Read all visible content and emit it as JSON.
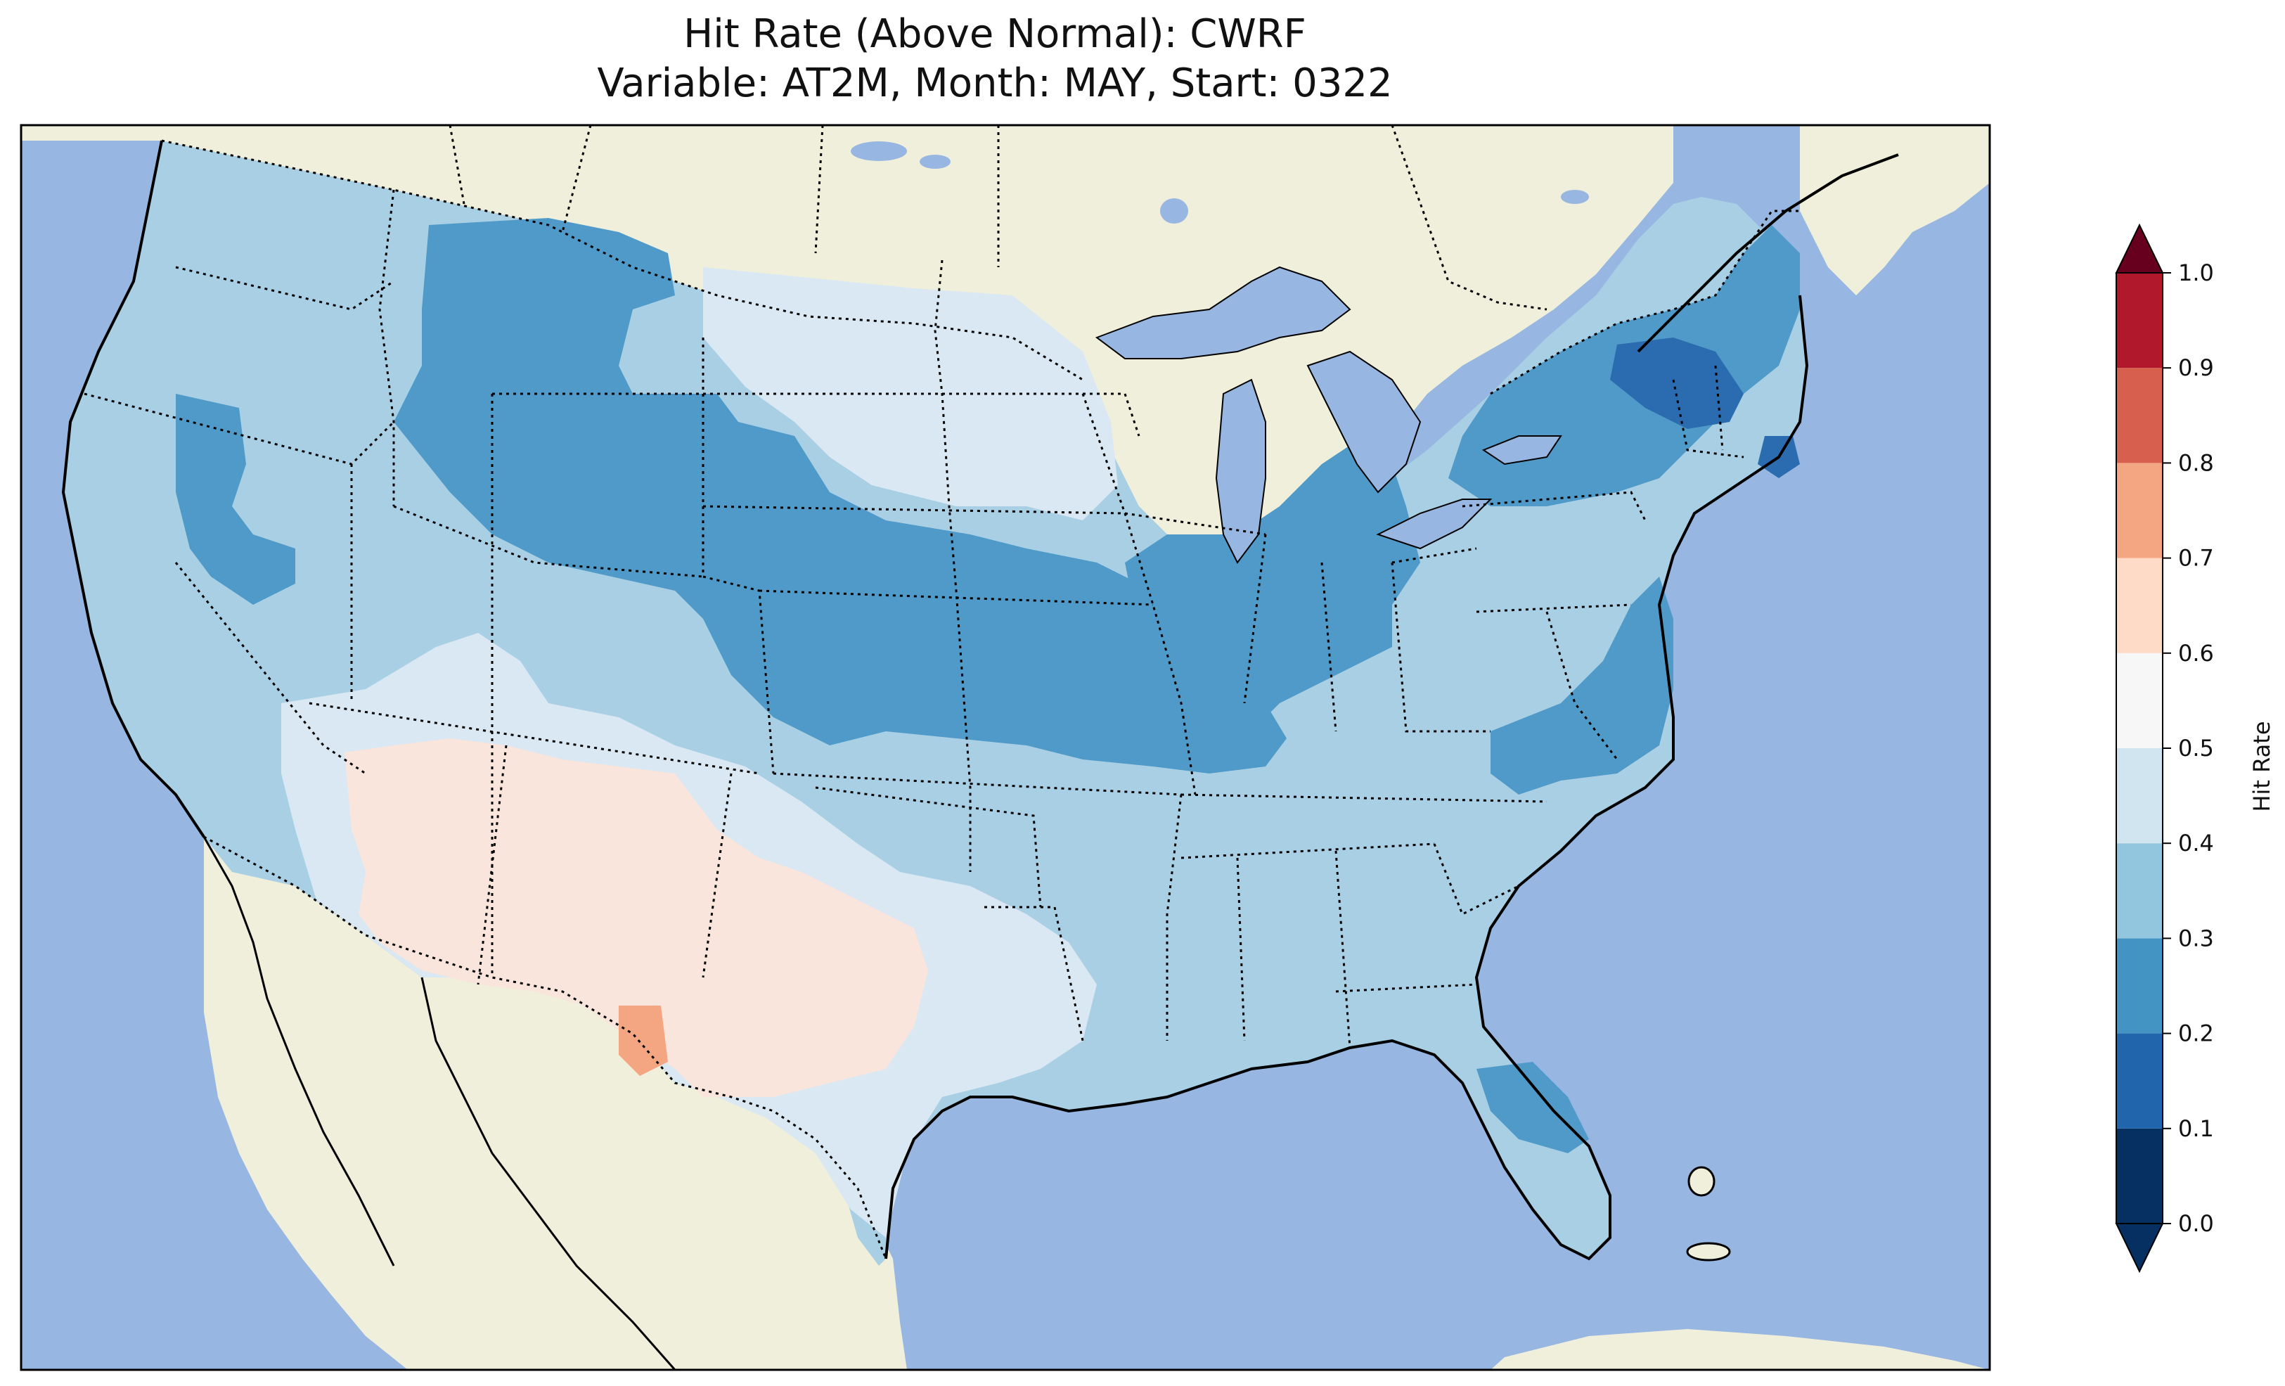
{
  "title": {
    "line1": "Hit Rate (Above Normal): CWRF",
    "line2": "Variable: AT2M, Month: MAY, Start: 0322"
  },
  "colorbar": {
    "label": "Hit Rate",
    "ticks": [
      "0.0",
      "0.1",
      "0.2",
      "0.3",
      "0.4",
      "0.5",
      "0.6",
      "0.7",
      "0.8",
      "0.9",
      "1.0"
    ],
    "colors": [
      "#053061",
      "#2166ac",
      "#4393c3",
      "#92c5de",
      "#d1e5f0",
      "#f7f7f7",
      "#fddbc7",
      "#f4a582",
      "#d6604d",
      "#b2182b",
      "#67001f"
    ],
    "extend": "both"
  },
  "map": {
    "ocean_color": "#97b6e1",
    "land_color": "#efefdb",
    "lake_color": "#97b6e1"
  }
}
